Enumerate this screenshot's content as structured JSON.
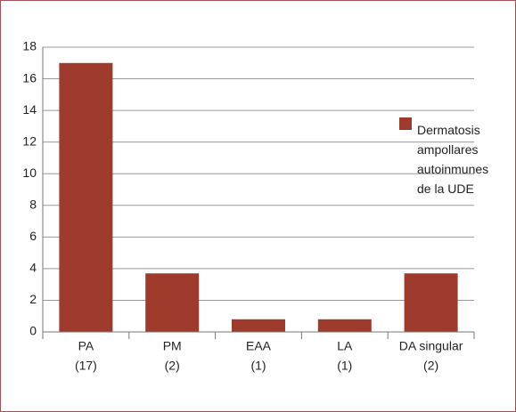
{
  "chart_data": {
    "type": "bar",
    "categories": [
      [
        "PA",
        "(17)"
      ],
      [
        "PM",
        "(2)"
      ],
      [
        "EAA",
        "(1)"
      ],
      [
        "LA",
        "(1)"
      ],
      [
        "DA singular",
        "(2)"
      ]
    ],
    "series": [
      {
        "name": "Dermatosis ampollares autoinmunes de la UDE",
        "color": "#9e3b2d",
        "values": [
          17,
          3.7,
          0.8,
          0.8,
          3.7
        ]
      }
    ],
    "ylim": [
      0,
      18
    ],
    "yticks": [
      0,
      2,
      4,
      6,
      8,
      10,
      12,
      14,
      16,
      18
    ],
    "grid": true,
    "legend": "right"
  }
}
